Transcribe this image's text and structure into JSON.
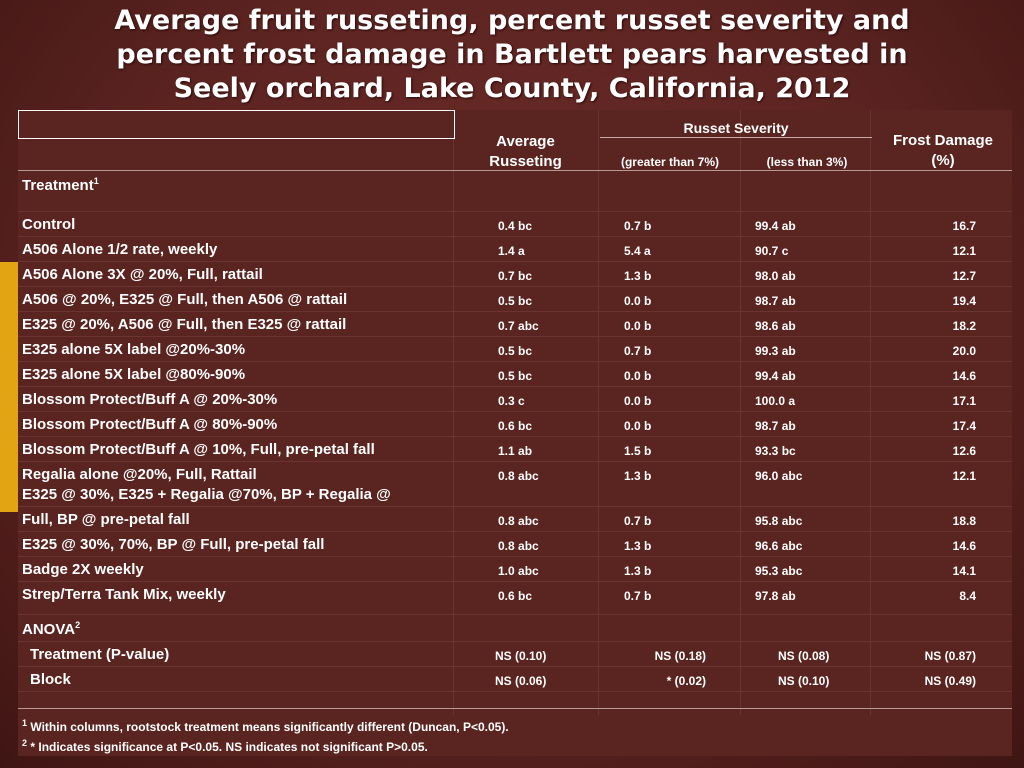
{
  "title": {
    "line1": "Average fruit russeting, percent russet severity and",
    "line2": "percent frost damage in Bartlett pears harvested in",
    "line3": "Seely orchard, Lake County, California, 2012"
  },
  "header": {
    "treatment": "Treatment",
    "treatment_sup": "1",
    "avg_russeting_1": "Average",
    "avg_russeting_2": "Russeting",
    "russet_severity": "Russet Severity",
    "greater": "(greater than 7%)",
    "less": "(less than 3%)",
    "frost_1": "Frost Damage",
    "frost_2": "(%)"
  },
  "rows": [
    {
      "label": "Control",
      "avg": "0.4 bc",
      "gt": "0.7 b",
      "lt": "99.4 ab",
      "frost": "16.7"
    },
    {
      "label": "A506 Alone 1/2 rate, weekly",
      "avg": "1.4 a",
      "gt": "5.4 a",
      "lt": "90.7 c",
      "frost": "12.1"
    },
    {
      "label": "A506 Alone 3X @ 20%, Full, rattail",
      "avg": "0.7 bc",
      "gt": "1.3 b",
      "lt": "98.0 ab",
      "frost": "12.7"
    },
    {
      "label": "A506 @ 20%, E325 @ Full, then A506 @ rattail",
      "avg": "0.5 bc",
      "gt": "0.0 b",
      "lt": "98.7 ab",
      "frost": "19.4"
    },
    {
      "label": "E325 @ 20%, A506 @ Full, then E325 @ rattail",
      "avg": "0.7 abc",
      "gt": "0.0 b",
      "lt": "98.6 ab",
      "frost": "18.2"
    },
    {
      "label": "E325 alone 5X label @20%-30%",
      "avg": "0.5 bc",
      "gt": "0.7 b",
      "lt": "99.3 ab",
      "frost": "20.0"
    },
    {
      "label": "E325 alone 5X label @80%-90%",
      "avg": "0.5 bc",
      "gt": "0.0 b",
      "lt": "99.4 ab",
      "frost": "14.6"
    },
    {
      "label": "Blossom Protect/Buff A @ 20%-30%",
      "avg": "0.3 c",
      "gt": "0.0 b",
      "lt": "100.0 a",
      "frost": "17.1"
    },
    {
      "label": "Blossom Protect/Buff A @ 80%-90%",
      "avg": "0.6 bc",
      "gt": "0.0 b",
      "lt": "98.7 ab",
      "frost": "17.4"
    },
    {
      "label": "Blossom Protect/Buff A @ 10%, Full, pre-petal fall",
      "avg": "1.1 ab",
      "gt": "1.5 b",
      "lt": "93.3 bc",
      "frost": "12.6"
    },
    {
      "label": "Regalia alone @20%, Full, Rattail",
      "avg": "0.8 abc",
      "gt": "1.3 b",
      "lt": "96.0 abc",
      "frost": "12.1"
    },
    {
      "label_1": "E325  @ 30%, E325 + Regalia @70%, BP + Regalia @",
      "label_2": "Full, BP @ pre-petal fall",
      "avg": "0.8 abc",
      "gt": "0.7 b",
      "lt": "95.8 abc",
      "frost": "18.8"
    },
    {
      "label": "E325  @ 30%, 70%, BP @ Full, pre-petal fall",
      "avg": "0.8 abc",
      "gt": "1.3 b",
      "lt": "96.6 abc",
      "frost": "14.6"
    },
    {
      "label": "Badge 2X weekly",
      "avg": "1.0 abc",
      "gt": "1.3 b",
      "lt": "95.3 abc",
      "frost": "14.1"
    },
    {
      "label": "Strep/Terra Tank Mix, weekly",
      "avg": "0.6 bc",
      "gt": "0.7 b",
      "lt": "97.8 ab",
      "frost": "8.4"
    }
  ],
  "anova": {
    "label": "ANOVA",
    "label_sup": "2",
    "rows": [
      {
        "label": "Treatment (P-value)",
        "avg": "NS (0.10)",
        "gt": "NS (0.18)",
        "lt": "NS (0.08)",
        "frost": "NS (0.87)"
      },
      {
        "label": "Block",
        "avg": "NS (0.06)",
        "gt": "* (0.02)",
        "lt": "NS (0.10)",
        "frost": "NS (0.49)"
      }
    ]
  },
  "footnotes": {
    "f1_sup": "1",
    "f1": " Within columns, rootstock treatment means significantly different (Duncan, P<0.05).",
    "f2_sup": "2",
    "f2": " * Indicates significance at P<0.05. NS indicates not significant P>0.05."
  }
}
